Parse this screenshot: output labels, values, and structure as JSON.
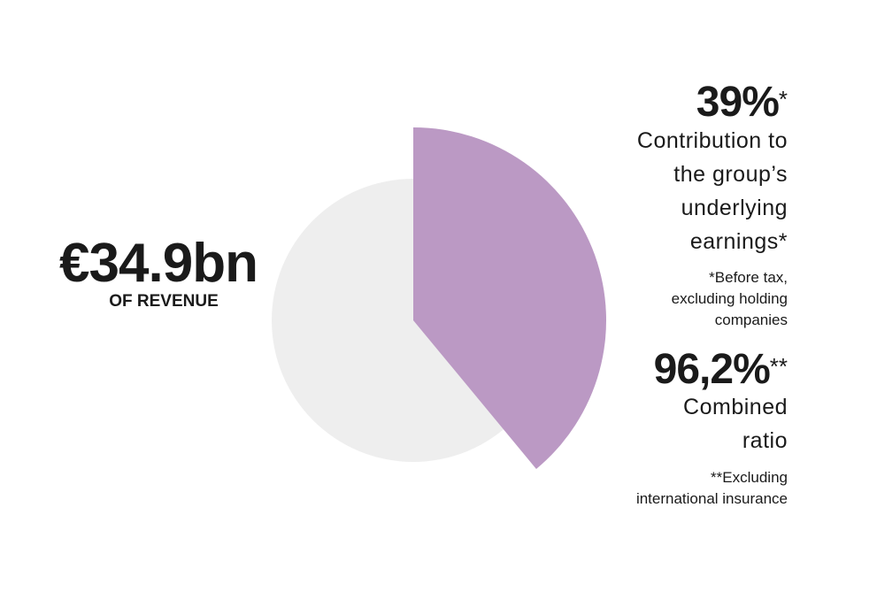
{
  "chart_data": {
    "type": "pie",
    "values": [
      39
    ],
    "value_labels": [
      "39%"
    ],
    "color": "#bb99c4"
  },
  "headline": {
    "amount": "€34.9bn",
    "caption": "OF REVENUE"
  },
  "stats": [
    {
      "mark": "*",
      "description": [
        "Contribution to",
        "the group’s",
        "underlying",
        "earnings*"
      ],
      "footnote": [
        "*Before tax,",
        "excluding holding",
        "companies"
      ]
    },
    {
      "value": "96,2%",
      "mark": "**",
      "description": [
        "Combined",
        "ratio"
      ],
      "footnote": [
        "**Excluding",
        "international insurance"
      ]
    }
  ]
}
